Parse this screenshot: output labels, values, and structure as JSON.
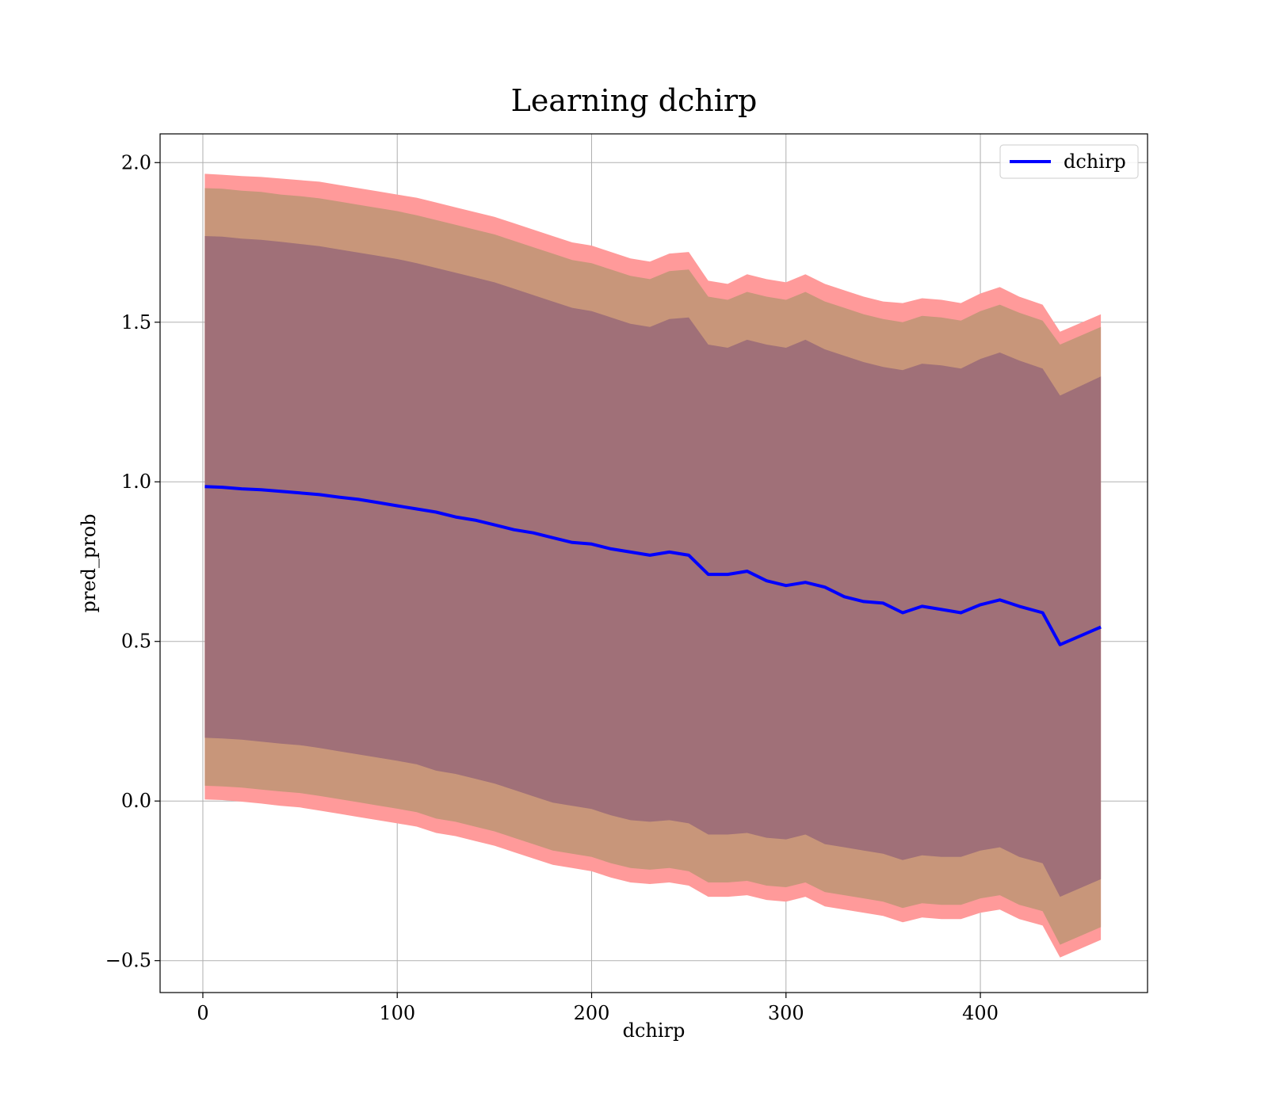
{
  "chart_data": {
    "type": "line",
    "title": "Learning dchirp",
    "xlabel": "dchirp",
    "ylabel": "pred_prob",
    "xlim": [
      -22,
      486
    ],
    "ylim": [
      -0.6,
      2.09
    ],
    "xticks": [
      0,
      100,
      200,
      300,
      400
    ],
    "yticks": [
      -0.5,
      0.0,
      0.5,
      1.0,
      1.5,
      2.0
    ],
    "xtick_labels": [
      "0",
      "100",
      "200",
      "300",
      "400"
    ],
    "ytick_labels": [
      "−0.5",
      "0.0",
      "0.5",
      "1.0",
      "1.5",
      "2.0"
    ],
    "grid": true,
    "legend_position": "top-right",
    "colors": {
      "mean_line": "#0000ff",
      "band_outer": "#ff9a9a",
      "band_middle": "#c8967a",
      "band_inner": "#a07078"
    },
    "series": [
      {
        "name": "dchirp",
        "x": [
          1,
          10,
          20,
          30,
          40,
          50,
          60,
          70,
          80,
          90,
          100,
          110,
          120,
          130,
          140,
          150,
          160,
          170,
          180,
          190,
          200,
          210,
          220,
          230,
          240,
          250,
          260,
          270,
          280,
          290,
          300,
          310,
          320,
          330,
          340,
          350,
          360,
          370,
          380,
          390,
          400,
          410,
          420,
          432,
          441,
          462
        ],
        "y": [
          0.985,
          0.983,
          0.978,
          0.975,
          0.97,
          0.965,
          0.96,
          0.952,
          0.945,
          0.935,
          0.925,
          0.915,
          0.905,
          0.89,
          0.88,
          0.865,
          0.85,
          0.84,
          0.825,
          0.81,
          0.805,
          0.79,
          0.78,
          0.77,
          0.78,
          0.77,
          0.71,
          0.71,
          0.72,
          0.69,
          0.675,
          0.685,
          0.67,
          0.64,
          0.625,
          0.62,
          0.59,
          0.61,
          0.6,
          0.59,
          0.615,
          0.63,
          0.61,
          0.59,
          0.49,
          0.545
        ]
      }
    ],
    "bands": [
      {
        "level": "outer",
        "upper": [
          1.965,
          1.962,
          1.958,
          1.955,
          1.95,
          1.945,
          1.94,
          1.93,
          1.92,
          1.91,
          1.9,
          1.89,
          1.875,
          1.86,
          1.845,
          1.83,
          1.81,
          1.79,
          1.77,
          1.75,
          1.74,
          1.72,
          1.7,
          1.69,
          1.715,
          1.72,
          1.63,
          1.62,
          1.65,
          1.635,
          1.625,
          1.65,
          1.62,
          1.6,
          1.58,
          1.565,
          1.56,
          1.575,
          1.57,
          1.56,
          1.59,
          1.61,
          1.58,
          1.555,
          1.47,
          1.525
        ],
        "lower": [
          0.005,
          0.003,
          -0.002,
          -0.008,
          -0.015,
          -0.02,
          -0.03,
          -0.04,
          -0.05,
          -0.06,
          -0.07,
          -0.08,
          -0.1,
          -0.11,
          -0.125,
          -0.14,
          -0.16,
          -0.18,
          -0.2,
          -0.21,
          -0.22,
          -0.24,
          -0.255,
          -0.26,
          -0.255,
          -0.265,
          -0.3,
          -0.3,
          -0.295,
          -0.31,
          -0.315,
          -0.3,
          -0.33,
          -0.34,
          -0.35,
          -0.36,
          -0.38,
          -0.365,
          -0.37,
          -0.37,
          -0.35,
          -0.34,
          -0.37,
          -0.39,
          -0.49,
          -0.435
        ]
      },
      {
        "level": "middle",
        "upper": [
          1.92,
          1.918,
          1.912,
          1.908,
          1.9,
          1.895,
          1.888,
          1.878,
          1.868,
          1.858,
          1.848,
          1.835,
          1.82,
          1.805,
          1.79,
          1.775,
          1.755,
          1.735,
          1.715,
          1.695,
          1.685,
          1.665,
          1.645,
          1.635,
          1.66,
          1.665,
          1.58,
          1.57,
          1.595,
          1.58,
          1.57,
          1.595,
          1.565,
          1.545,
          1.525,
          1.51,
          1.5,
          1.52,
          1.515,
          1.505,
          1.535,
          1.555,
          1.53,
          1.505,
          1.43,
          1.485
        ],
        "lower": [
          0.048,
          0.046,
          0.042,
          0.036,
          0.03,
          0.025,
          0.016,
          0.006,
          -0.004,
          -0.014,
          -0.024,
          -0.035,
          -0.055,
          -0.065,
          -0.08,
          -0.095,
          -0.115,
          -0.135,
          -0.155,
          -0.165,
          -0.175,
          -0.195,
          -0.21,
          -0.215,
          -0.21,
          -0.22,
          -0.255,
          -0.255,
          -0.25,
          -0.265,
          -0.27,
          -0.255,
          -0.285,
          -0.295,
          -0.305,
          -0.315,
          -0.335,
          -0.32,
          -0.325,
          -0.325,
          -0.305,
          -0.295,
          -0.325,
          -0.345,
          -0.45,
          -0.395
        ]
      },
      {
        "level": "inner",
        "upper": [
          1.77,
          1.768,
          1.762,
          1.758,
          1.752,
          1.745,
          1.738,
          1.728,
          1.718,
          1.708,
          1.698,
          1.685,
          1.67,
          1.655,
          1.64,
          1.625,
          1.605,
          1.585,
          1.565,
          1.545,
          1.535,
          1.515,
          1.495,
          1.485,
          1.51,
          1.515,
          1.43,
          1.42,
          1.445,
          1.43,
          1.42,
          1.445,
          1.415,
          1.395,
          1.375,
          1.36,
          1.35,
          1.37,
          1.365,
          1.355,
          1.385,
          1.405,
          1.38,
          1.355,
          1.27,
          1.33
        ],
        "lower": [
          0.198,
          0.196,
          0.192,
          0.186,
          0.18,
          0.175,
          0.166,
          0.156,
          0.146,
          0.136,
          0.126,
          0.115,
          0.095,
          0.085,
          0.07,
          0.055,
          0.035,
          0.015,
          -0.005,
          -0.015,
          -0.025,
          -0.045,
          -0.06,
          -0.065,
          -0.06,
          -0.07,
          -0.105,
          -0.105,
          -0.1,
          -0.115,
          -0.12,
          -0.105,
          -0.135,
          -0.145,
          -0.155,
          -0.165,
          -0.185,
          -0.17,
          -0.175,
          -0.175,
          -0.155,
          -0.145,
          -0.175,
          -0.195,
          -0.3,
          -0.245
        ]
      }
    ]
  }
}
